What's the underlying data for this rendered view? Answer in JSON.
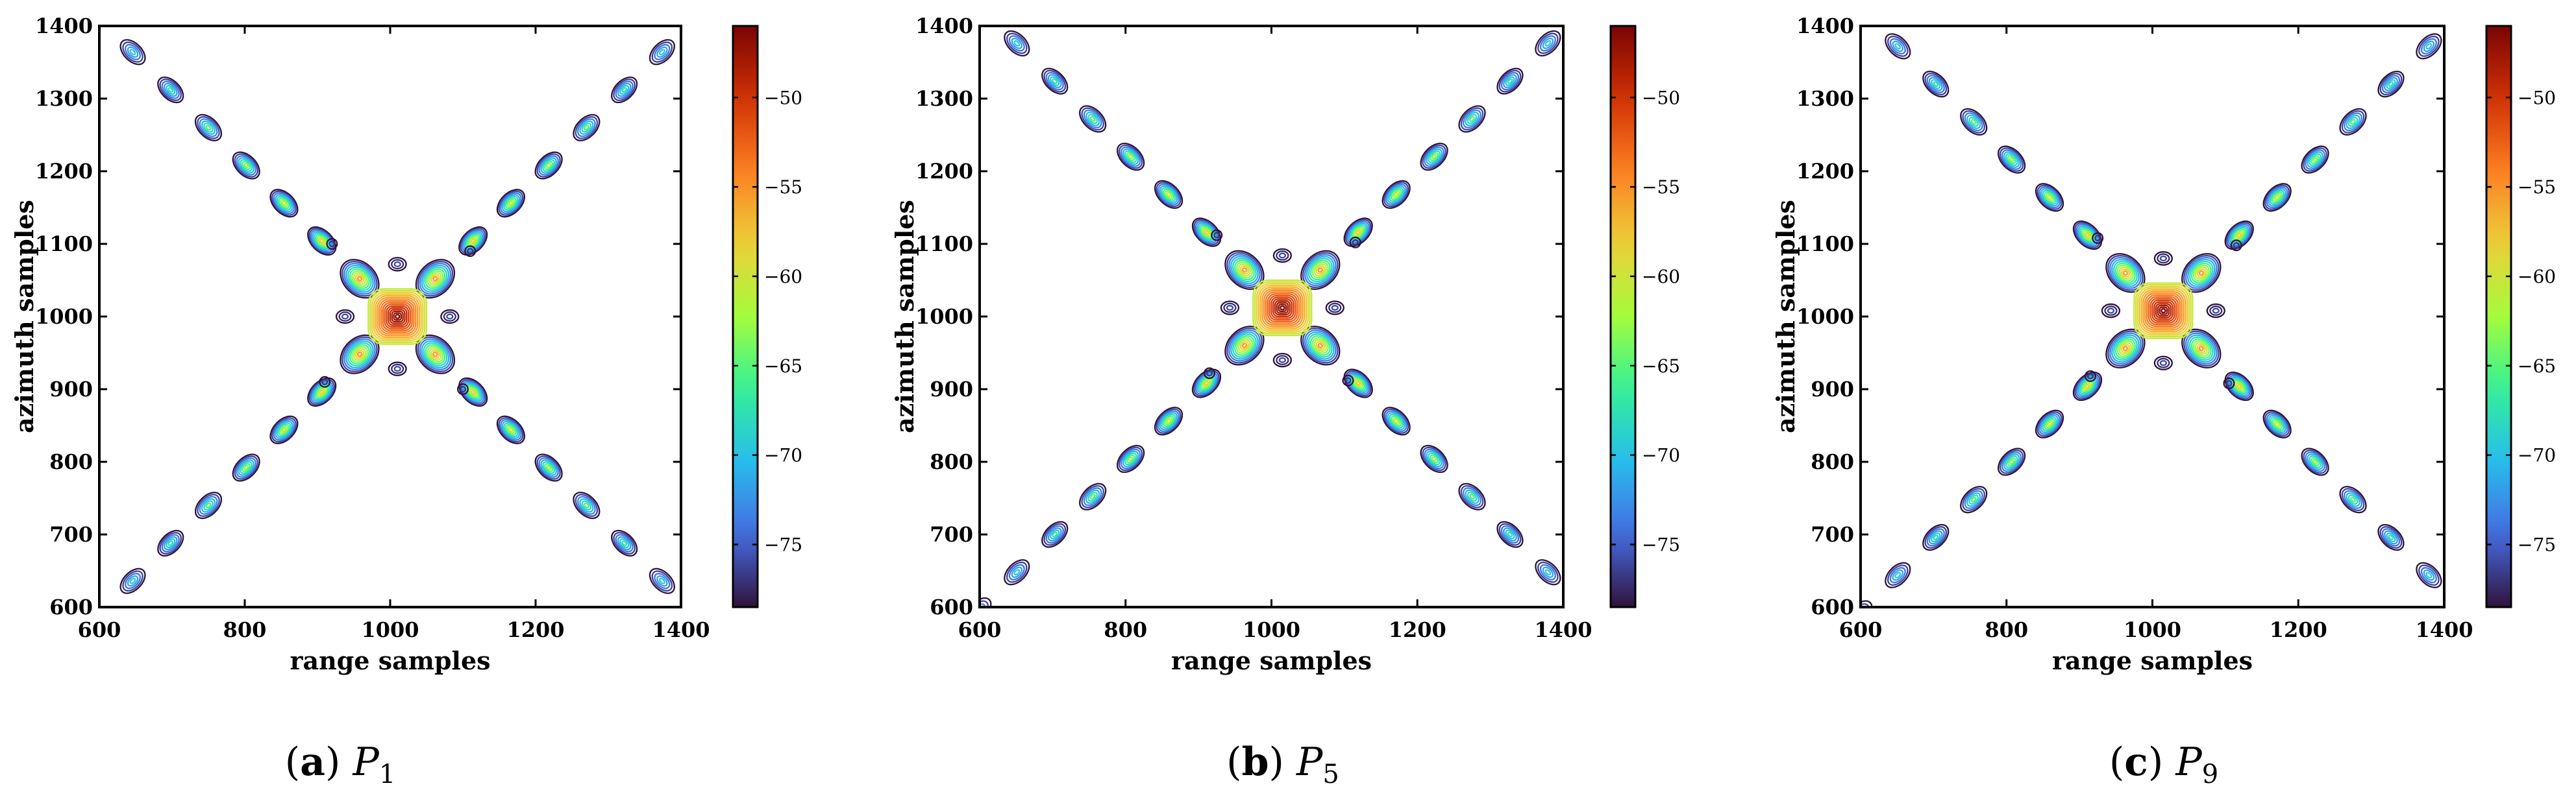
{
  "chart_data": [
    {
      "type": "contour",
      "panel_label": "(a)",
      "caption_symbol": "P",
      "caption_subscript": "1",
      "xlabel": "range samples",
      "ylabel": "azimuth samples",
      "xlim": [
        600,
        1400
      ],
      "ylim": [
        600,
        1400
      ],
      "xticks": [
        600,
        800,
        1000,
        1200,
        1400
      ],
      "yticks": [
        600,
        700,
        800,
        900,
        1000,
        1100,
        1200,
        1300,
        1400
      ],
      "center": [
        1010,
        1000
      ],
      "colorbar": {
        "ticks": [
          -50,
          -55,
          -60,
          -65,
          -70,
          -75
        ],
        "tick_labels": [
          "−50",
          "−55",
          "−60",
          "−65",
          "−70",
          "−75"
        ],
        "range": [
          -78.5,
          -46
        ]
      }
    },
    {
      "type": "contour",
      "panel_label": "(b)",
      "caption_symbol": "P",
      "caption_subscript": "5",
      "xlabel": "range samples",
      "ylabel": "azimuth samples",
      "xlim": [
        600,
        1400
      ],
      "ylim": [
        600,
        1400
      ],
      "xticks": [
        600,
        800,
        1000,
        1200,
        1400
      ],
      "yticks": [
        600,
        700,
        800,
        900,
        1000,
        1100,
        1200,
        1300,
        1400
      ],
      "center": [
        1015,
        1012
      ],
      "colorbar": {
        "ticks": [
          -50,
          -55,
          -60,
          -65,
          -70,
          -75
        ],
        "tick_labels": [
          "−50",
          "−55",
          "−60",
          "−65",
          "−70",
          "−75"
        ],
        "range": [
          -78.5,
          -46
        ]
      }
    },
    {
      "type": "contour",
      "panel_label": "(c)",
      "caption_symbol": "P",
      "caption_subscript": "9",
      "xlabel": "range samples",
      "ylabel": "azimuth samples",
      "xlim": [
        600,
        1400
      ],
      "ylim": [
        600,
        1400
      ],
      "xticks": [
        600,
        800,
        1000,
        1200,
        1400
      ],
      "yticks": [
        600,
        700,
        800,
        900,
        1000,
        1100,
        1200,
        1300,
        1400
      ],
      "center": [
        1015,
        1008
      ],
      "colorbar": {
        "ticks": [
          -50,
          -55,
          -60,
          -65,
          -70,
          -75
        ],
        "tick_labels": [
          "−50",
          "−55",
          "−60",
          "−65",
          "−70",
          "−75"
        ],
        "range": [
          -78.5,
          -46
        ]
      }
    }
  ]
}
